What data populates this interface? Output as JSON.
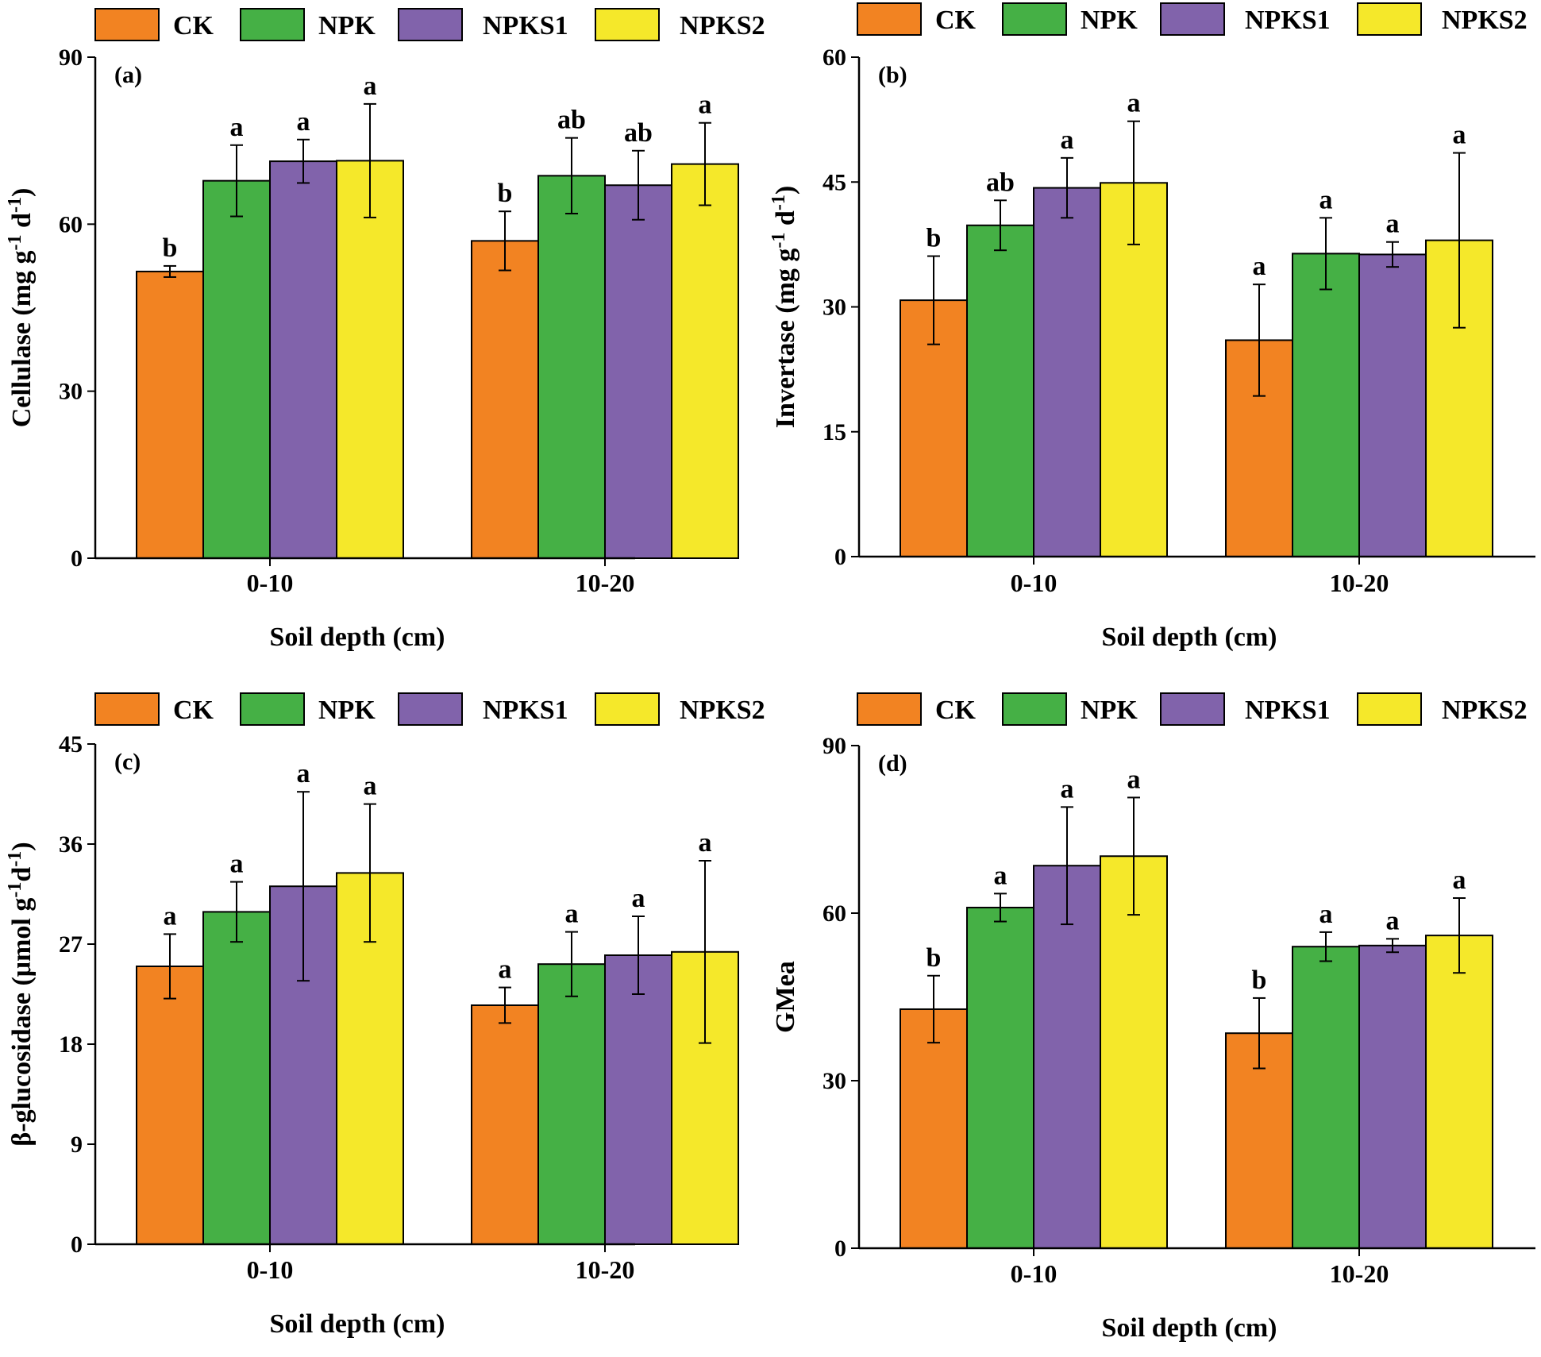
{
  "legend": [
    "CK",
    "NPK",
    "NPKS1",
    "NPKS2"
  ],
  "colors": {
    "CK": "#f28322",
    "NPK": "#45b045",
    "NPKS1": "#8163ab",
    "NPKS2": "#f5e82a"
  },
  "chart_data": [
    {
      "type": "bar",
      "panel": "(a)",
      "categories": [
        "0-10",
        "10-20"
      ],
      "xlabel": "Soil depth (cm)",
      "ylabel_main": "Cellulase (mg g",
      "ylabel_sup1": "-1",
      "ylabel_mid": " d",
      "ylabel_sup2": "-1",
      "ylabel_end": ")",
      "ylim": [
        0,
        90
      ],
      "yticks": [
        "0",
        "30",
        "60",
        "90"
      ],
      "series": [
        {
          "name": "CK",
          "values": [
            51.5,
            57.0
          ],
          "errors": [
            1.0,
            5.3
          ],
          "letters": [
            "b",
            "b"
          ]
        },
        {
          "name": "NPK",
          "values": [
            67.8,
            68.7
          ],
          "errors": [
            6.4,
            6.8
          ],
          "letters": [
            "a",
            "ab"
          ]
        },
        {
          "name": "NPKS1",
          "values": [
            71.3,
            67.0
          ],
          "errors": [
            3.9,
            6.2
          ],
          "letters": [
            "a",
            "ab"
          ]
        },
        {
          "name": "NPKS2",
          "values": [
            71.4,
            70.8
          ],
          "errors": [
            10.2,
            7.4
          ],
          "letters": [
            "a",
            "a"
          ]
        }
      ]
    },
    {
      "type": "bar",
      "panel": "(b)",
      "categories": [
        "0-10",
        "10-20"
      ],
      "xlabel": "Soil depth (cm)",
      "ylabel_main": "Invertase (mg g",
      "ylabel_sup1": "-1",
      "ylabel_mid": " d",
      "ylabel_sup2": "-1",
      "ylabel_end": ")",
      "ylim": [
        0,
        60
      ],
      "yticks": [
        "0",
        "15",
        "30",
        "45",
        "60"
      ],
      "series": [
        {
          "name": "CK",
          "values": [
            30.8,
            26.0
          ],
          "errors": [
            5.3,
            6.7
          ],
          "letters": [
            "b",
            "a"
          ]
        },
        {
          "name": "NPK",
          "values": [
            39.8,
            36.4
          ],
          "errors": [
            3.0,
            4.3
          ],
          "letters": [
            "ab",
            "a"
          ]
        },
        {
          "name": "NPKS1",
          "values": [
            44.3,
            36.3
          ],
          "errors": [
            3.6,
            1.5
          ],
          "letters": [
            "a",
            "a"
          ]
        },
        {
          "name": "NPKS2",
          "values": [
            44.9,
            38.0
          ],
          "errors": [
            7.4,
            10.5
          ],
          "letters": [
            "a",
            "a"
          ]
        }
      ]
    },
    {
      "type": "bar",
      "panel": "(c)",
      "categories": [
        "0-10",
        "10-20"
      ],
      "xlabel": "Soil depth (cm)",
      "ylabel_main": "β-glucosidase (μmol g",
      "ylabel_sup1": "-1",
      "ylabel_mid": "d",
      "ylabel_sup2": "-1",
      "ylabel_end": ")",
      "ylim": [
        0,
        45
      ],
      "yticks": [
        "0",
        "9",
        "18",
        "27",
        "36",
        "45"
      ],
      "series": [
        {
          "name": "CK",
          "values": [
            25.0,
            21.5
          ],
          "errors": [
            2.9,
            1.6
          ],
          "letters": [
            "a",
            "a"
          ]
        },
        {
          "name": "NPK",
          "values": [
            29.9,
            25.2
          ],
          "errors": [
            2.7,
            2.9
          ],
          "letters": [
            "a",
            "a"
          ]
        },
        {
          "name": "NPKS1",
          "values": [
            32.2,
            26.0
          ],
          "errors": [
            8.5,
            3.5
          ],
          "letters": [
            "a",
            "a"
          ]
        },
        {
          "name": "NPKS2",
          "values": [
            33.4,
            26.3
          ],
          "errors": [
            6.2,
            8.2
          ],
          "letters": [
            "a",
            "a"
          ]
        }
      ]
    },
    {
      "type": "bar",
      "panel": "(d)",
      "categories": [
        "0-10",
        "10-20"
      ],
      "xlabel": "Soil depth (cm)",
      "ylabel_main": "GMea",
      "ylabel_sup1": "",
      "ylabel_mid": "",
      "ylabel_sup2": "",
      "ylabel_end": "",
      "ylim": [
        0,
        90
      ],
      "yticks": [
        "0",
        "30",
        "60",
        "90"
      ],
      "series": [
        {
          "name": "CK",
          "values": [
            42.8,
            38.5
          ],
          "errors": [
            6.0,
            6.3
          ],
          "letters": [
            "b",
            "b"
          ]
        },
        {
          "name": "NPK",
          "values": [
            61.0,
            54.0
          ],
          "errors": [
            2.5,
            2.6
          ],
          "letters": [
            "a",
            "a"
          ]
        },
        {
          "name": "NPKS1",
          "values": [
            68.5,
            54.2
          ],
          "errors": [
            10.5,
            1.2
          ],
          "letters": [
            "a",
            "a"
          ]
        },
        {
          "name": "NPKS2",
          "values": [
            70.2,
            56.0
          ],
          "errors": [
            10.5,
            6.7
          ],
          "letters": [
            "a",
            "a"
          ]
        }
      ]
    }
  ]
}
